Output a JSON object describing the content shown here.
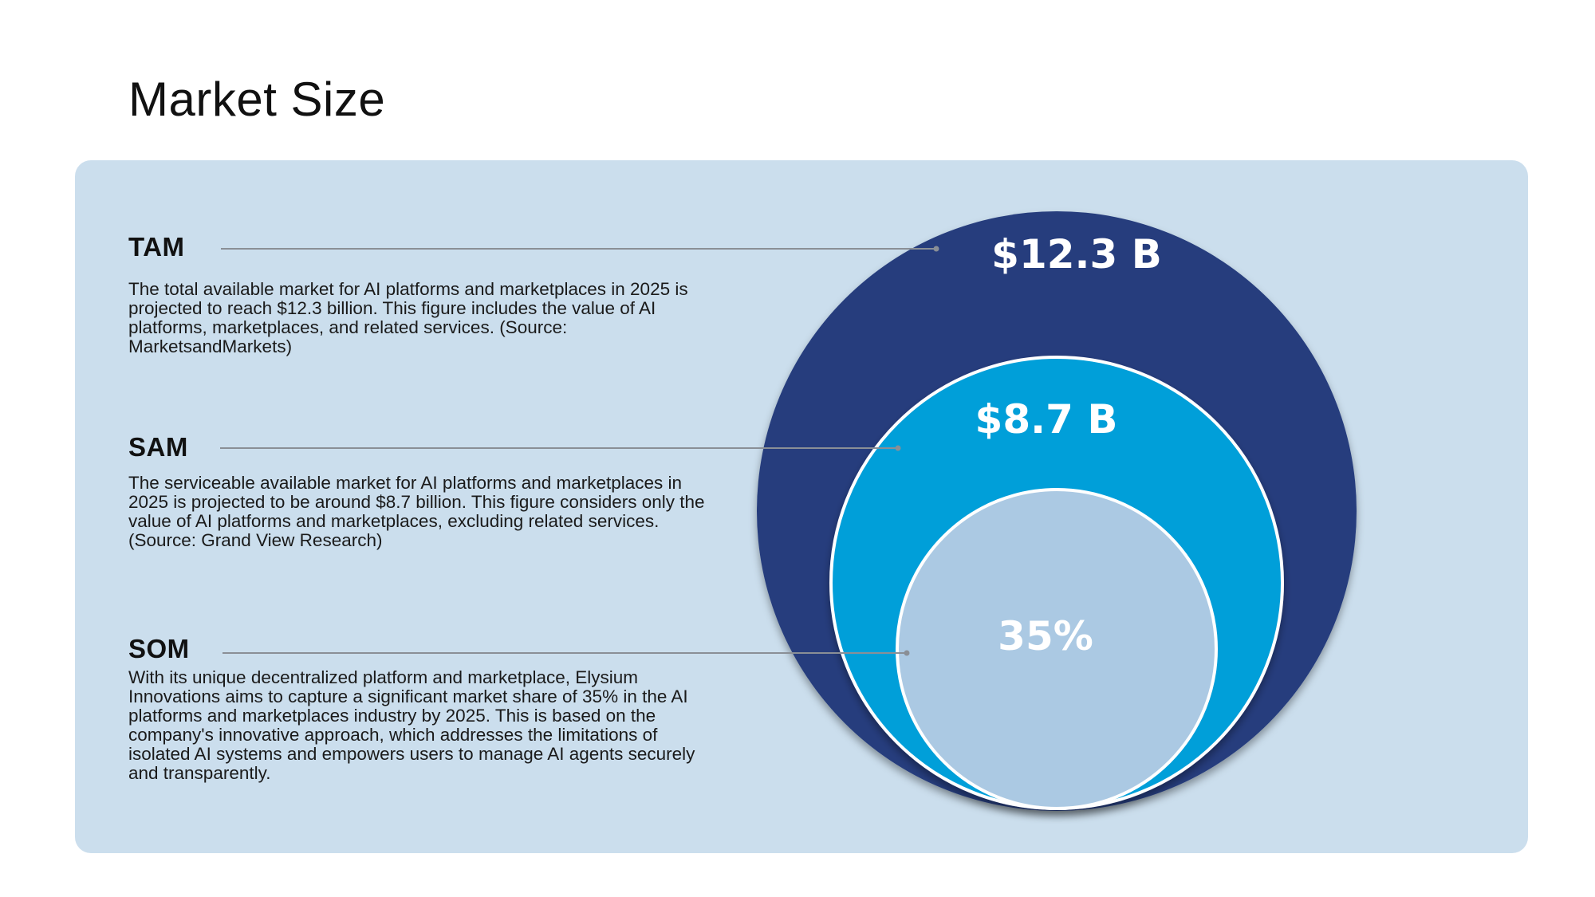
{
  "page": {
    "title": "Market Size"
  },
  "sections": {
    "tam": {
      "heading": "TAM",
      "body": "The total available market for AI platforms and marketplaces in 2025 is projected to reach $12.3 billion. This figure includes the value of AI platforms, marketplaces, and related services. (Source: MarketsandMarkets)"
    },
    "sam": {
      "heading": "SAM",
      "body": "The serviceable available market for AI platforms and marketplaces in 2025 is projected to be around $8.7 billion. This figure considers only the value of AI platforms and marketplaces, excluding related services. (Source: Grand View Research)"
    },
    "som": {
      "heading": "SOM",
      "body": "With its unique decentralized platform and marketplace, Elysium Innovations aims to capture a significant market share of 35% in the AI platforms and marketplaces industry by 2025. This is based on the company's innovative approach, which addresses the limitations of isolated AI systems and empowers users to manage AI agents securely and transparently."
    }
  },
  "circles": {
    "tam_value": "$12.3 B",
    "sam_value": "$8.7 B",
    "som_value": "35%"
  },
  "colors": {
    "panel_background": "#cbdeed",
    "tam_circle": "#253c7d",
    "sam_circle": "#009fd9",
    "som_circle": "#abc9e3",
    "leader_line": "#8a8f96"
  }
}
